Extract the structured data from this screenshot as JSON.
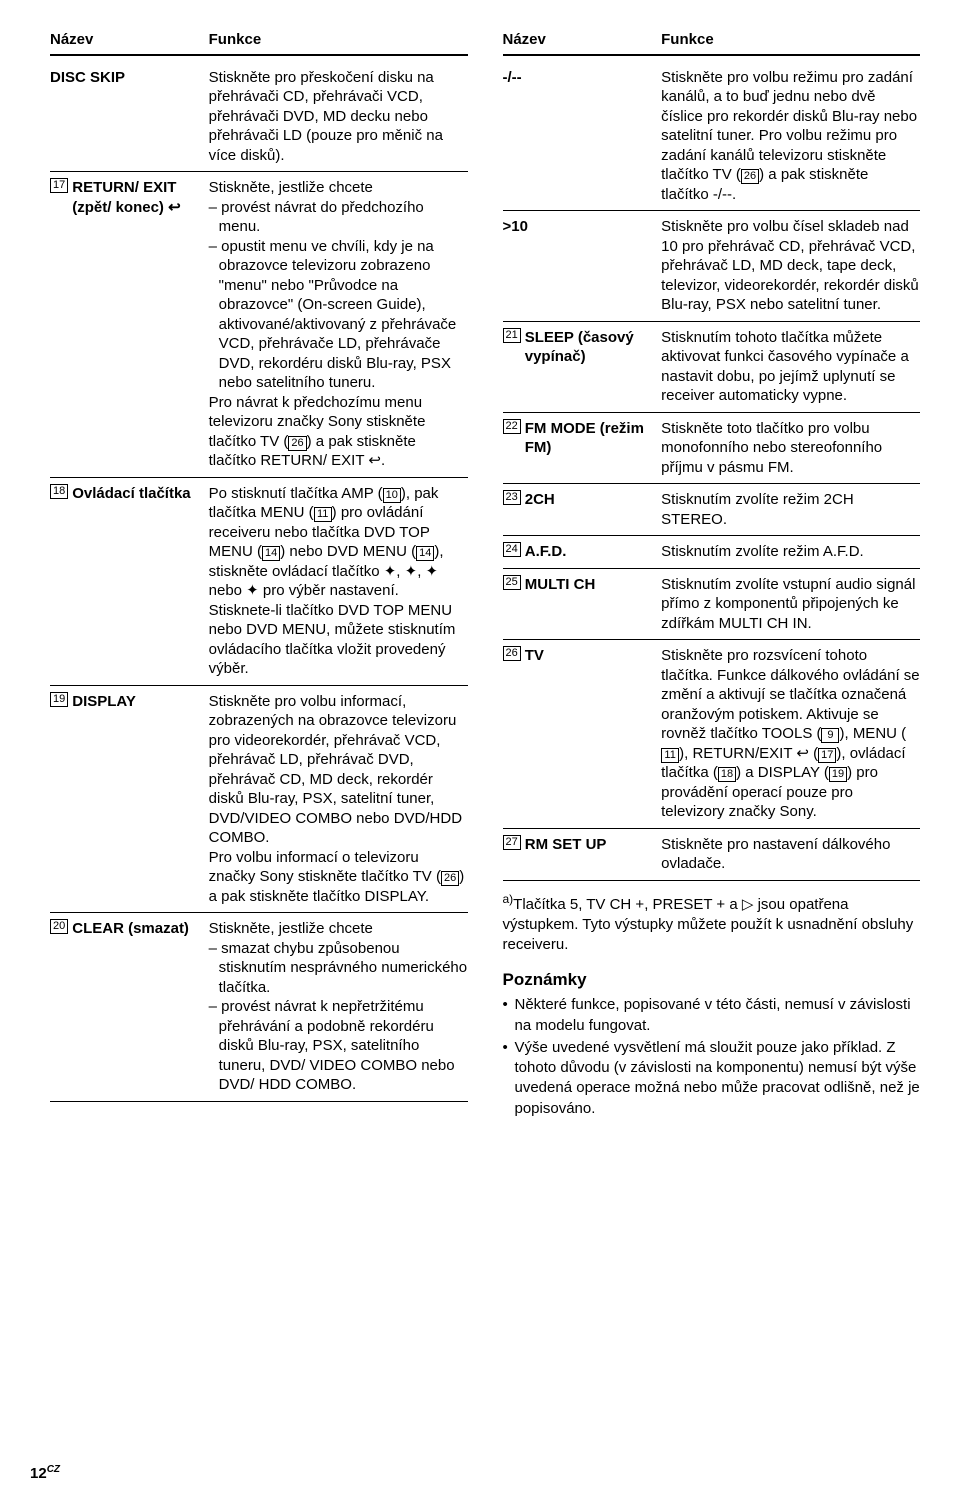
{
  "left": {
    "head_name": "Název",
    "head_func": "Funkce",
    "rows": [
      {
        "num": "",
        "name": "DISC SKIP",
        "func": "Stiskněte pro přeskočení disku na přehrávači CD, přehrávači VCD, přehrávači DVD, MD decku nebo přehrávači LD (pouze pro měnič na více disků)."
      },
      {
        "num": "17",
        "name": "RETURN/ EXIT (zpět/ konec) ↩",
        "func_html": "Stiskněte, jestliže chcete<span class=\"sub\">– provést návrat do předchozího menu.</span><span class=\"sub\">– opustit menu ve chvíli, kdy je na obrazovce televizoru zobrazeno \"menu\" nebo \"Průvodce na obrazovce\" (On-screen Guide), aktivované/aktivovaný z přehrávače VCD, přehrávače LD, přehrávače DVD, rekordéru disků Blu-ray, PSX nebo satelitního tuneru.</span>Pro návrat k předchozímu menu televizoru značky Sony stiskněte tlačítko TV (<span class=\"inline-box\">26</span>) a pak stiskněte tlačítko RETURN/ EXIT ↩."
      },
      {
        "num": "18",
        "name": "Ovládací tlačítka",
        "func_html": "Po stisknutí tlačítka AMP (<span class=\"inline-box\">10</span>), pak tlačítka MENU (<span class=\"inline-box\">11</span>) pro ovládání receiveru nebo tlačítka DVD TOP MENU (<span class=\"inline-box\">14</span>) nebo DVD MENU (<span class=\"inline-box\">14</span>), stiskněte ovládací tlačítko ✦, ✦, ✦ nebo ✦ pro výběr nastavení. Stisknete-li tlačítko DVD TOP MENU nebo DVD MENU, můžete stisknutím ovládacího tlačítka vložit provedený výběr."
      },
      {
        "num": "19",
        "name": "DISPLAY",
        "func_html": "Stiskněte pro volbu informací, zobrazených na obrazovce televizoru pro videorekordér, přehrávač VCD, přehrávač LD, přehrávač DVD, přehrávač CD, MD deck, rekordér disků Blu-ray, PSX, satelitní tuner, DVD/VIDEO COMBO nebo DVD/HDD COMBO.<br>Pro volbu informací o televizoru značky Sony stiskněte tlačítko TV (<span class=\"inline-box\">26</span>) a pak stiskněte tlačítko DISPLAY."
      },
      {
        "num": "20",
        "name": "CLEAR (smazat)",
        "func_html": "Stiskněte, jestliže chcete<span class=\"sub\">– smazat chybu způsobenou stisknutím nesprávného numerického tlačítka.</span><span class=\"sub\">– provést návrat k nepřetržitému přehrávání a podobně rekordéru disků Blu-ray, PSX, satelitního tuneru, DVD/ VIDEO COMBO nebo DVD/ HDD COMBO.</span>"
      }
    ]
  },
  "right": {
    "head_name": "Název",
    "head_func": "Funkce",
    "rows": [
      {
        "num": "",
        "name": "-/--",
        "func_html": "Stiskněte pro volbu režimu pro zadání kanálů, a to buď jednu nebo dvě číslice pro rekordér disků Blu-ray nebo satelitní tuner. Pro volbu režimu pro zadání kanálů televizoru stiskněte tlačítko TV (<span class=\"inline-box\">26</span>) a pak stiskněte tlačítko -/--."
      },
      {
        "num": "",
        "name": ">10",
        "func": "Stiskněte pro volbu čísel skladeb nad 10 pro přehrávač CD, přehrávač VCD, přehrávač LD, MD deck, tape deck, televizor, videorekordér, rekordér disků Blu-ray, PSX nebo satelitní tuner."
      },
      {
        "num": "21",
        "name": "SLEEP (časový vypínač)",
        "func": "Stisknutím tohoto tlačítka můžete aktivovat funkci časového vypínače a nastavit dobu, po jejímž uplynutí se receiver automaticky vypne."
      },
      {
        "num": "22",
        "name": "FM MODE (režim FM)",
        "func": "Stiskněte toto tlačítko pro volbu monofonního nebo stereofonního příjmu v pásmu FM."
      },
      {
        "num": "23",
        "name": "2CH",
        "func": "Stisknutím zvolíte režim 2CH STEREO."
      },
      {
        "num": "24",
        "name": "A.F.D.",
        "func": "Stisknutím zvolíte režim A.F.D."
      },
      {
        "num": "25",
        "name": "MULTI CH",
        "func": "Stisknutím zvolíte vstupní audio signál přímo z komponentů připojených ke zdířkám MULTI CH IN."
      },
      {
        "num": "26",
        "name": "TV",
        "func_html": "Stiskněte pro rozsvícení tohoto tlačítka. Funkce dálkového ovládání se změní a aktivují se tlačítka označená oranžovým potiskem. Aktivuje se rovněž tlačítko TOOLS (<span class=\"inline-box\">9</span>), MENU (<span class=\"inline-box\">11</span>), RETURN/EXIT ↩ (<span class=\"inline-box\">17</span>), ovládací tlačítka (<span class=\"inline-box\">18</span>) a DISPLAY (<span class=\"inline-box\">19</span>) pro provádění operací pouze pro televizory značky Sony."
      },
      {
        "num": "27",
        "name": "RM SET UP",
        "func": "Stiskněte pro nastavení dálkového ovladače."
      }
    ],
    "footnote_html": "<sup>a)</sup>Tlačítka 5, TV CH +, PRESET + a ▷ jsou opatřena výstupkem. Tyto výstupky můžete použít k usnadnění obsluhy receiveru.",
    "notes_heading": "Poznámky",
    "notes": [
      "Některé funkce, popisované v této části, nemusí v závislosti na modelu fungovat.",
      "Výše uvedené vysvětlení má sloužit pouze jako příklad. Z tohoto důvodu (v závislosti na komponentu) nemusí být výše uvedená operace možná nebo může pracovat odlišně, než je popisováno."
    ]
  },
  "page_num": "12",
  "page_suffix": "CZ"
}
